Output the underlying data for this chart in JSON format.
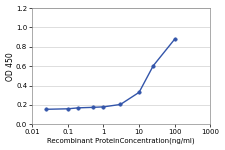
{
  "x": [
    0.025,
    0.1,
    0.2,
    0.5,
    1.0,
    3.0,
    10.0,
    25.0,
    100.0
  ],
  "y": [
    0.155,
    0.16,
    0.17,
    0.175,
    0.18,
    0.205,
    0.33,
    0.605,
    0.88
  ],
  "line_color": "#3355aa",
  "marker_color": "#3355aa",
  "marker_style": "o",
  "marker_size": 2.5,
  "line_width": 1.0,
  "xlabel": "Recombinant ProteinConcentration(ng/ml)",
  "ylabel": "OD 450",
  "xlim_log": [
    0.01,
    1000
  ],
  "ylim": [
    0,
    1.2
  ],
  "yticks": [
    0,
    0.2,
    0.4,
    0.6,
    0.8,
    1.0,
    1.2
  ],
  "xticks": [
    0.01,
    0.1,
    1,
    10,
    100,
    1000
  ],
  "xtick_labels": [
    "0.01",
    "0.1",
    "1",
    "10",
    "100",
    "1000"
  ],
  "background_color": "#ffffff",
  "plot_bg_color": "#ffffff",
  "grid_color": "#d8d8d8",
  "xlabel_fontsize": 5.0,
  "ylabel_fontsize": 5.5,
  "tick_fontsize": 5.0
}
